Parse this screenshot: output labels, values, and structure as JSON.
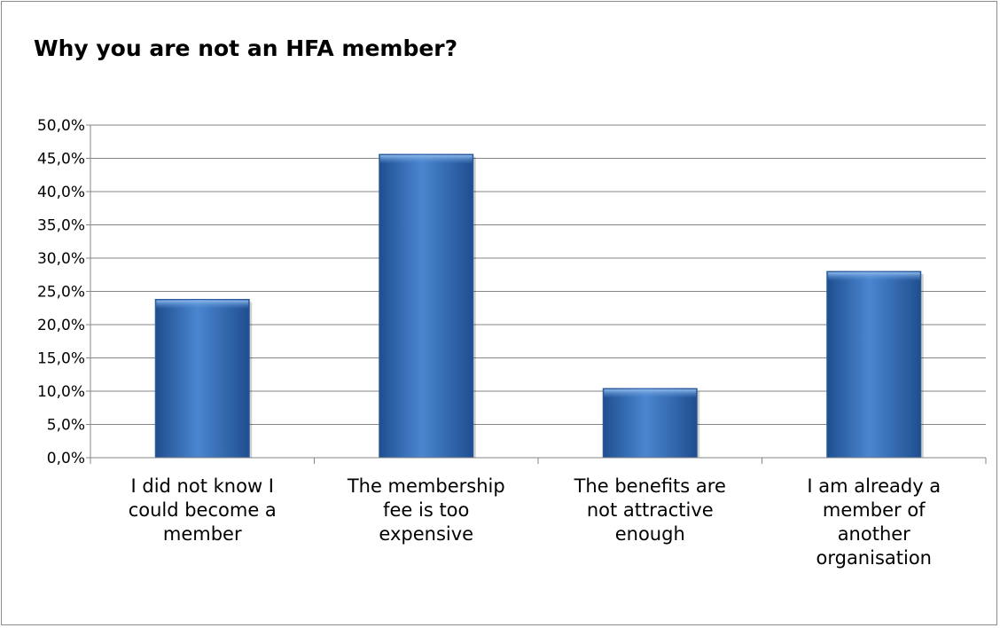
{
  "chart_data": {
    "type": "bar",
    "title": "Why you are not an HFA member?",
    "categories": [
      "I did not know I could become a member",
      "The membership fee is too expensive",
      "The benefits are not attractive enough",
      "I am already a member of another organisation"
    ],
    "category_lines": [
      [
        "I did not know I",
        "could become a",
        "member"
      ],
      [
        "The membership",
        "fee is too",
        "expensive"
      ],
      [
        "The benefits are",
        "not attractive",
        "enough"
      ],
      [
        "I am already a",
        "member of",
        "another",
        "organisation"
      ]
    ],
    "values": [
      23.8,
      45.6,
      10.4,
      28.0
    ],
    "yticks": [
      "0,0%",
      "5,0%",
      "10,0%",
      "15,0%",
      "20,0%",
      "25,0%",
      "30,0%",
      "35,0%",
      "40,0%",
      "45,0%",
      "50,0%"
    ],
    "ylim": [
      0,
      50
    ],
    "grid": true,
    "legend": "none",
    "bar_color": "#4a86d0",
    "bar_color_dark": "#1f4e8f",
    "grid_color": "#868686"
  }
}
